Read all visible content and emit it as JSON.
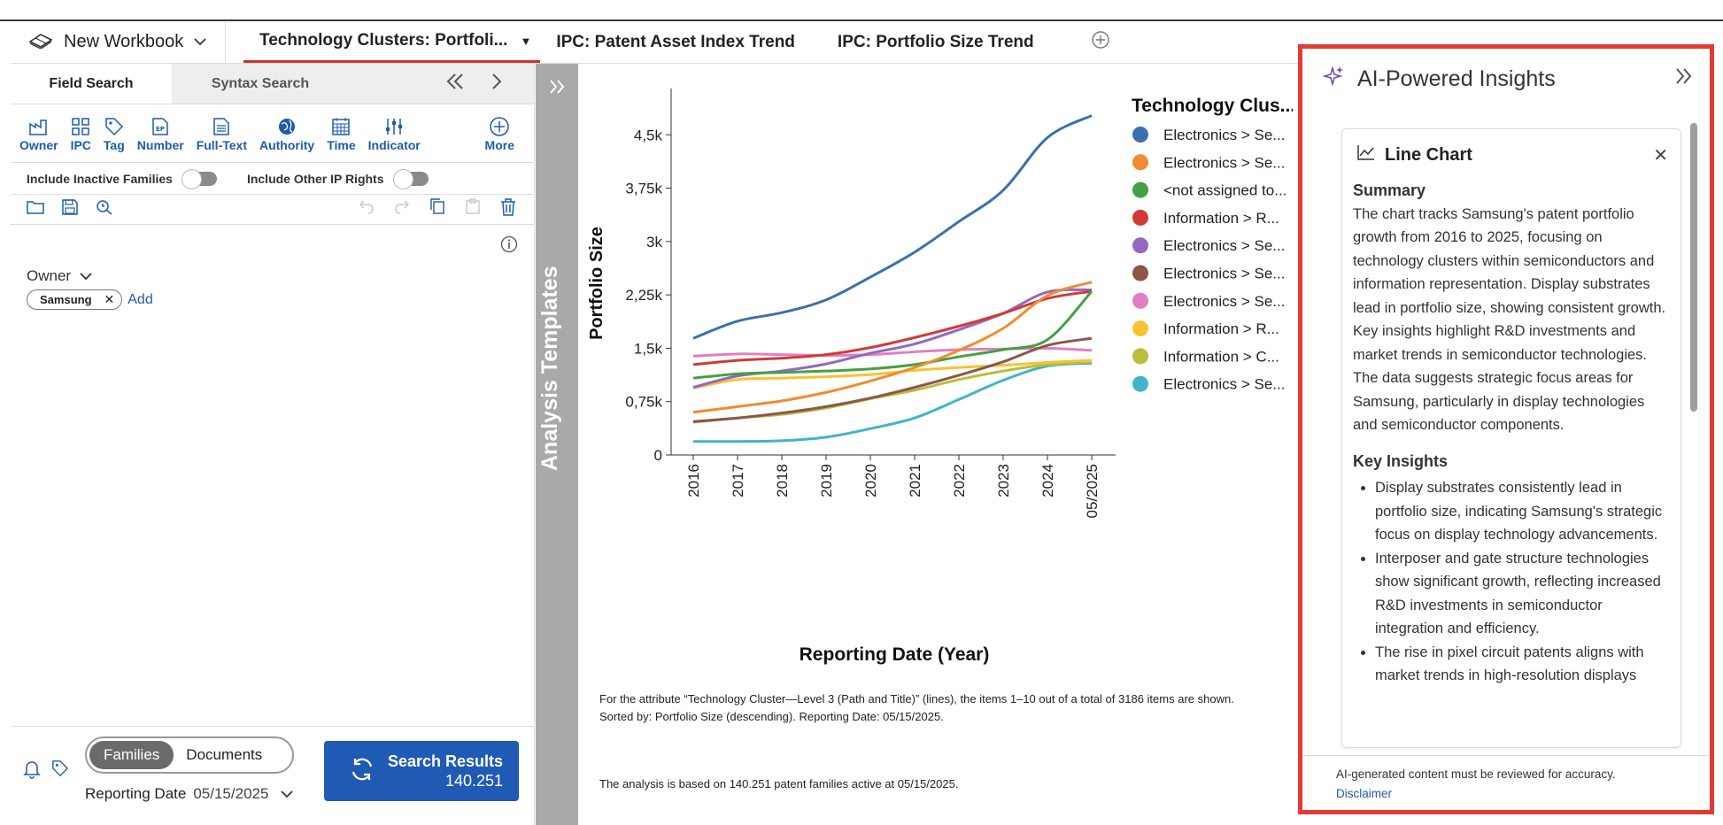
{
  "workbook": {
    "label": "New Workbook"
  },
  "tabs": [
    {
      "label": "Technology Clusters: Portfoli...",
      "active": true
    },
    {
      "label": "IPC: Patent Asset Index Trend"
    },
    {
      "label": "IPC: Portfolio Size Trend"
    }
  ],
  "left": {
    "subtabs": {
      "field": "Field Search",
      "syntax": "Syntax Search"
    },
    "tools": [
      "Owner",
      "IPC",
      "Tag",
      "Number",
      "Full-Text",
      "Authority",
      "Time",
      "Indicator",
      "More"
    ],
    "toggles": {
      "inactive": "Include Inactive Families",
      "other": "Include Other IP Rights"
    },
    "owner_label": "Owner",
    "chip": "Samsung",
    "add": "Add",
    "segment": {
      "on": "Families",
      "off": "Documents"
    },
    "reporting_label": "Reporting Date",
    "reporting_value": "05/15/2025",
    "search_label": "Search Results",
    "search_count": "140.251"
  },
  "rail": {
    "title": "Analysis Templates"
  },
  "chart_data": {
    "type": "line",
    "title": "",
    "xlabel": "Reporting Date (Year)",
    "ylabel": "Portfolio Size",
    "x": [
      "2016",
      "2017",
      "2018",
      "2019",
      "2020",
      "2021",
      "2022",
      "2023",
      "2024",
      "05/2025"
    ],
    "y_ticks": [
      "0",
      "0,75k",
      "1,5k",
      "2,25k",
      "3k",
      "3,75k",
      "4,5k"
    ],
    "ylim": [
      0,
      5150
    ],
    "legend_title": "Technology Clus...",
    "legend_position": "right",
    "series": [
      {
        "name": "Electronics > Se...",
        "color": "#3a70ad",
        "values": [
          1640,
          1880,
          2000,
          2180,
          2500,
          2850,
          3280,
          3720,
          4460,
          4770
        ]
      },
      {
        "name": "Electronics > Se...",
        "color": "#f28a30",
        "values": [
          600,
          680,
          760,
          880,
          1040,
          1230,
          1470,
          1780,
          2240,
          2430
        ]
      },
      {
        "name": "<not assigned to...",
        "color": "#44a043",
        "values": [
          1080,
          1140,
          1160,
          1180,
          1210,
          1270,
          1380,
          1480,
          1620,
          2300
        ]
      },
      {
        "name": "Information > R...",
        "color": "#d23a35",
        "values": [
          1270,
          1330,
          1360,
          1410,
          1510,
          1650,
          1810,
          1990,
          2200,
          2300
        ]
      },
      {
        "name": "Electronics > Se...",
        "color": "#9467c0",
        "values": [
          950,
          1110,
          1180,
          1280,
          1430,
          1560,
          1760,
          1990,
          2290,
          2320
        ]
      },
      {
        "name": "Electronics > Se...",
        "color": "#8c564b",
        "values": [
          470,
          520,
          590,
          680,
          800,
          950,
          1120,
          1310,
          1540,
          1640
        ]
      },
      {
        "name": "Electronics > Se...",
        "color": "#e07fc1",
        "values": [
          1390,
          1420,
          1410,
          1400,
          1410,
          1450,
          1480,
          1490,
          1500,
          1470
        ]
      },
      {
        "name": "Information > R...",
        "color": "#f8c232",
        "values": [
          940,
          1060,
          1080,
          1100,
          1130,
          1190,
          1230,
          1260,
          1300,
          1330
        ]
      },
      {
        "name": "Information > C...",
        "color": "#bcbd39",
        "values": [
          460,
          520,
          570,
          660,
          790,
          910,
          1060,
          1180,
          1270,
          1310
        ]
      },
      {
        "name": "Electronics > Se...",
        "color": "#41b4c9",
        "values": [
          190,
          190,
          200,
          250,
          370,
          520,
          780,
          1050,
          1250,
          1290
        ]
      }
    ]
  },
  "captions": {
    "line1": "For the attribute “Technology Cluster—Level 3 (Path and Title)” (lines), the items 1–10 out of a total of 3186 items are shown.",
    "line2": "Sorted by: Portfolio Size (descending). Reporting Date: 05/15/2025.",
    "line3": "The analysis is based on 140.251 patent families active at 05/15/2025."
  },
  "ai": {
    "title": "AI-Powered Insights",
    "card_title": "Line Chart",
    "summary_h": "Summary",
    "summary": "The chart tracks Samsung's patent portfolio growth from 2016 to 2025, focusing on technology clusters within semiconductors and information representation. Display substrates lead in portfolio size, showing consistent growth. Key insights highlight R&D investments and market trends in semiconductor technologies. The data suggests strategic focus areas for Samsung, particularly in display technologies and semiconductor components.",
    "insights_h": "Key Insights",
    "insights": [
      "Display substrates consistently lead in portfolio size, indicating Samsung's strategic focus on display technology advancements.",
      "Interposer and gate structure technologies show significant growth, reflecting increased R&D investments in semiconductor integration and efficiency.",
      "The rise in pixel circuit patents aligns with market trends in high-resolution displays"
    ],
    "footer": "AI-generated content must be reviewed for accuracy.",
    "disclaimer": "Disclaimer"
  }
}
